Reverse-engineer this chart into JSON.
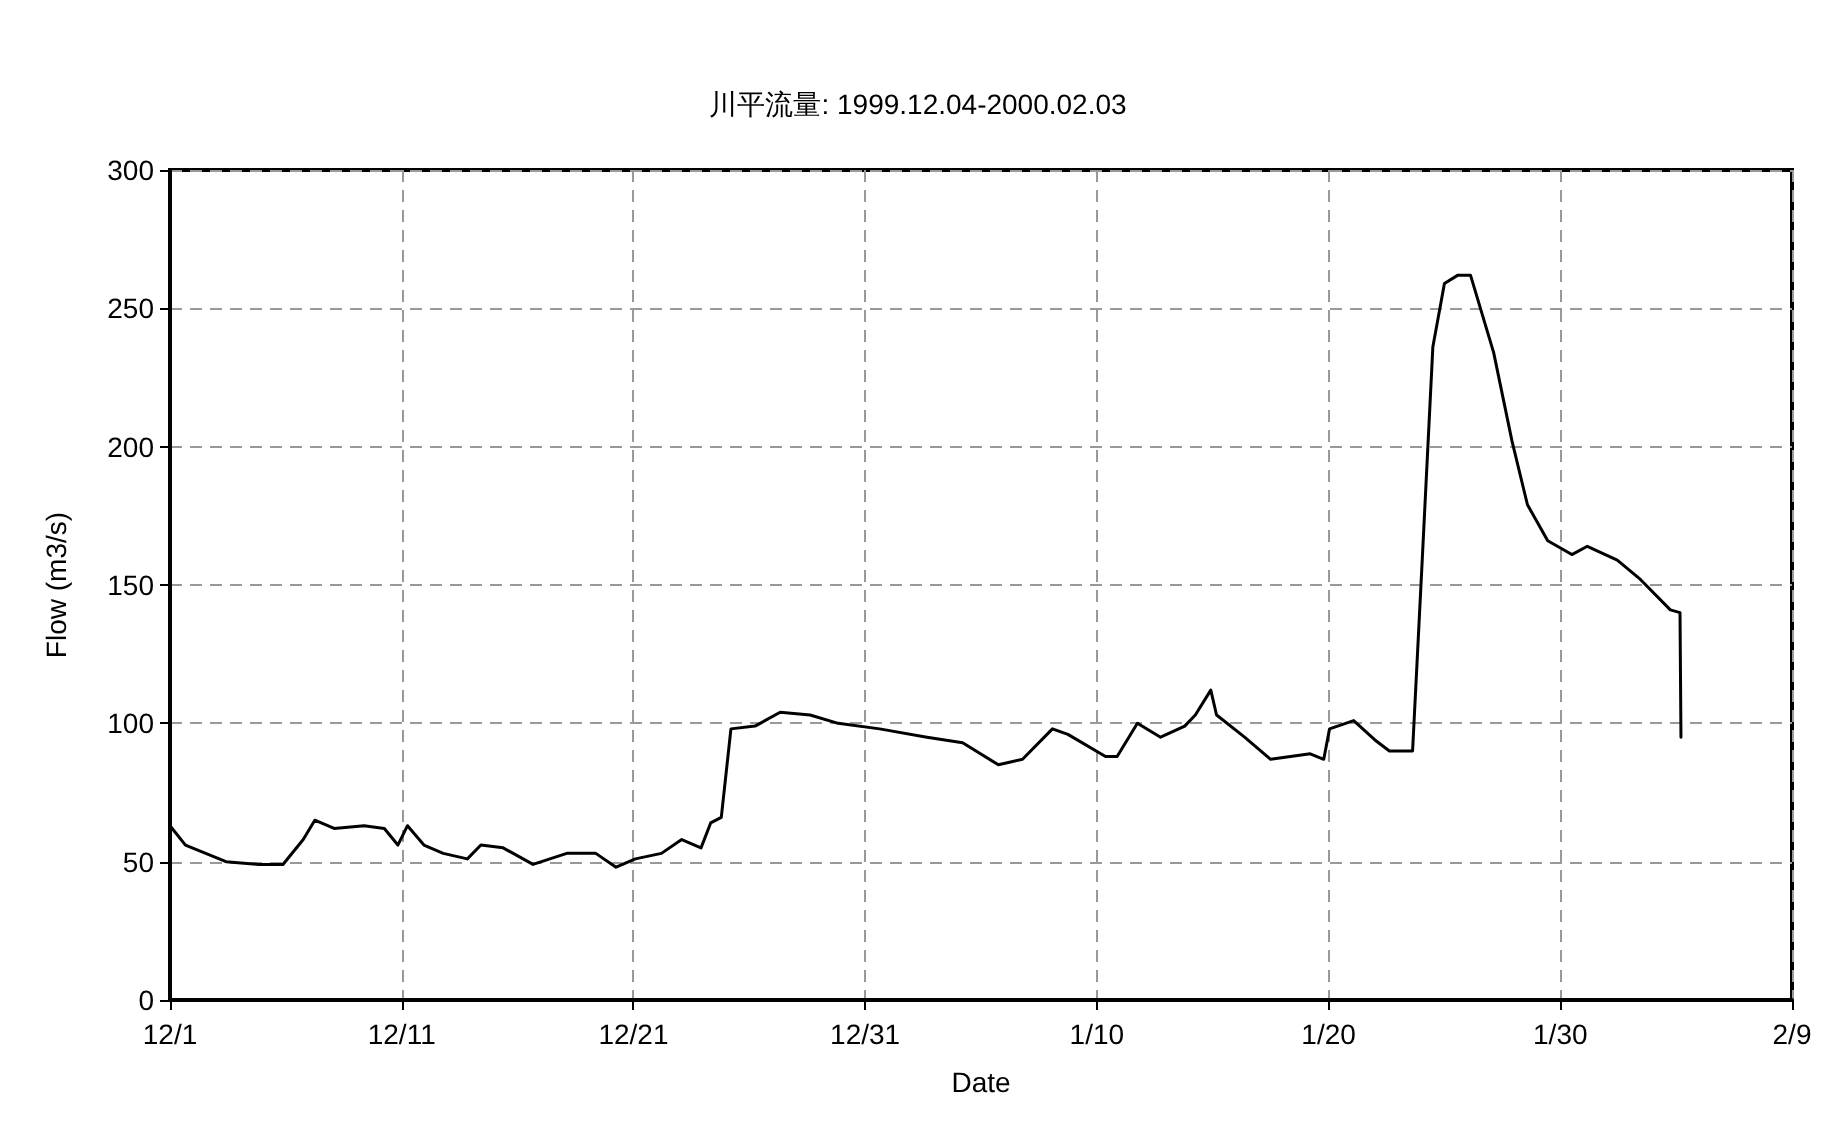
{
  "chart_data": {
    "type": "line",
    "title": "川平流量: 1999.12.04-2000.02.03",
    "xlabel": "Date",
    "ylabel": "Flow (m3/s)",
    "x": [
      "1999-12-01T00:00",
      "1999-12-01T16:00",
      "1999-12-03T10:00",
      "1999-12-04T20:00",
      "1999-12-05T21:00",
      "1999-12-06T18:00",
      "1999-12-07T06:00",
      "1999-12-08T02:00",
      "1999-12-09T09:00",
      "1999-12-10T06:00",
      "1999-12-10T20:00",
      "1999-12-11T06:00",
      "1999-12-11T23:00",
      "1999-12-12T19:00",
      "1999-12-13T20:00",
      "1999-12-14T10:00",
      "1999-12-15T09:00",
      "1999-12-16T16:00",
      "1999-12-18T03:00",
      "1999-12-19T09:00",
      "1999-12-20T06:00",
      "1999-12-21T02:00",
      "1999-12-22T05:00",
      "1999-12-23T02:00",
      "1999-12-23T22:00",
      "1999-12-24T08:00",
      "1999-12-24T19:00",
      "1999-12-25T05:00",
      "1999-12-26T06:00",
      "1999-12-27T08:00",
      "1999-12-28T15:00",
      "1999-12-29T20:00",
      "1999-12-31T15:00",
      "2000-01-02T16:00",
      "2000-01-04T05:00",
      "2000-01-05T18:00",
      "2000-01-06T19:00",
      "2000-01-08T02:00",
      "2000-01-08T18:00",
      "2000-01-10T09:00",
      "2000-01-10T21:00",
      "2000-01-11T18:00",
      "2000-01-12T18:00",
      "2000-01-13T19:00",
      "2000-01-14T06:00",
      "2000-01-14T22:00",
      "2000-01-15T04:00",
      "2000-01-16T09:00",
      "2000-01-17T12:00",
      "2000-01-19T05:00",
      "2000-01-19T19:00",
      "2000-01-20T01:00",
      "2000-01-21T02:00",
      "2000-01-22T00:00",
      "2000-01-22T15:00",
      "2000-01-23T15:00",
      "2000-01-24T01:00",
      "2000-01-24T12:00",
      "2000-01-25T00:00",
      "2000-01-25T14:00",
      "2000-01-26T03:00",
      "2000-01-26T15:00",
      "2000-01-27T03:00",
      "2000-01-27T22:00",
      "2000-01-28T14:00",
      "2000-01-29T11:00",
      "2000-01-30T12:00",
      "2000-01-31T04:00",
      "2000-02-01T11:00",
      "2000-02-02T11:00",
      "2000-02-03T18:00",
      "2000-02-04T04:00",
      "2000-02-04T05:00"
    ],
    "series": [
      {
        "color": "#000000",
        "values": [
          63,
          56,
          50,
          49,
          49,
          58,
          65,
          62,
          63,
          62,
          56,
          63,
          56,
          53,
          51,
          56,
          55,
          49,
          53,
          53,
          48,
          51,
          53,
          58,
          55,
          64,
          66,
          98,
          99,
          104,
          103,
          100,
          98,
          95,
          93,
          85,
          87,
          98,
          96,
          88,
          88,
          100,
          95,
          99,
          103,
          112,
          103,
          95,
          87,
          89,
          87,
          98,
          101,
          94,
          90,
          90,
          159,
          236,
          259,
          262,
          262,
          248,
          234,
          202,
          179,
          166,
          161,
          164,
          159,
          152,
          141,
          140,
          95
        ]
      }
    ],
    "xlim": [
      "1999-12-01",
      "2000-02-09"
    ],
    "xticks": [
      {
        "value": "1999-12-01",
        "label": "12/1"
      },
      {
        "value": "1999-12-11",
        "label": "12/11"
      },
      {
        "value": "1999-12-21",
        "label": "12/21"
      },
      {
        "value": "1999-12-31",
        "label": "12/31"
      },
      {
        "value": "2000-01-10",
        "label": "1/10"
      },
      {
        "value": "2000-01-20",
        "label": "1/20"
      },
      {
        "value": "2000-01-30",
        "label": "1/30"
      },
      {
        "value": "2000-02-09",
        "label": "2/9"
      }
    ],
    "ylim": [
      0,
      300
    ],
    "yticks": [
      0,
      50,
      100,
      150,
      200,
      250,
      300
    ],
    "grid": true,
    "marker": "none",
    "line_style": "solid"
  }
}
